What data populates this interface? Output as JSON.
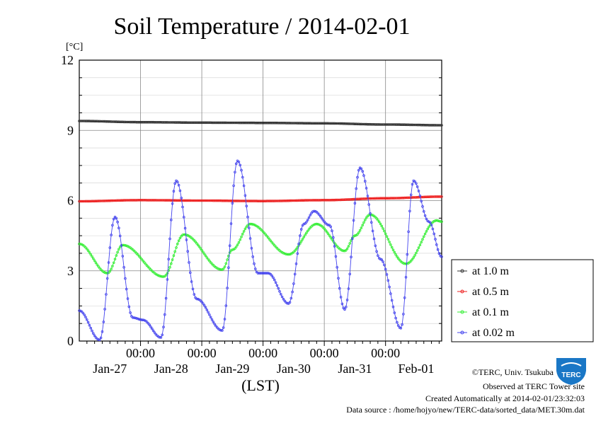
{
  "chart_data": {
    "type": "line",
    "title": "Soil Temperature / 2014-02-01",
    "ylabel": "[°C]",
    "xlabel": "(LST)",
    "ylim": [
      0,
      12
    ],
    "yticks": [
      0,
      3,
      6,
      9,
      12
    ],
    "xlim_hours": [
      0,
      142
    ],
    "xtick_hours": [
      24,
      48,
      72,
      96,
      120
    ],
    "xtick_time_labels": [
      "00:00",
      "00:00",
      "00:00",
      "00:00",
      "00:00"
    ],
    "xtick_date_labels": [
      "Jan-27",
      "Jan-28",
      "Jan-29",
      "Jan-30",
      "Jan-31",
      "Feb-01"
    ],
    "grid": true,
    "legend_position": "right",
    "series": [
      {
        "name": "at 1.0 m",
        "color": "#333333",
        "x": [
          0,
          24,
          48,
          72,
          96,
          120,
          142
        ],
        "y": [
          9.4,
          9.35,
          9.33,
          9.32,
          9.3,
          9.25,
          9.22
        ]
      },
      {
        "name": "at 0.5 m",
        "color": "#ee2222",
        "x": [
          0,
          24,
          48,
          72,
          96,
          120,
          142
        ],
        "y": [
          5.97,
          6.02,
          6.0,
          5.98,
          6.02,
          6.1,
          6.17
        ]
      },
      {
        "name": "at 0.1 m",
        "color": "#33ee33",
        "x": [
          0,
          11,
          17,
          33,
          41,
          56,
          60,
          67,
          82,
          93,
          104,
          108,
          114,
          128,
          140,
          142
        ],
        "y": [
          4.15,
          2.9,
          4.1,
          2.75,
          4.55,
          3.05,
          3.9,
          5.0,
          3.7,
          5.0,
          3.85,
          4.5,
          5.4,
          3.3,
          5.15,
          5.1
        ]
      },
      {
        "name": "at 0.02 m",
        "color": "#4444ee",
        "x": [
          0,
          8,
          14,
          21,
          25,
          32,
          38,
          46,
          56,
          62,
          70,
          74,
          82,
          88,
          92,
          98,
          104,
          110,
          118,
          126,
          131,
          137,
          142
        ],
        "y": [
          1.3,
          0.05,
          5.3,
          1.0,
          0.9,
          0.15,
          6.85,
          1.8,
          0.45,
          7.7,
          2.9,
          2.9,
          1.6,
          5.0,
          5.55,
          4.95,
          1.35,
          7.4,
          3.5,
          0.55,
          6.85,
          5.1,
          3.6
        ]
      }
    ]
  },
  "credits": {
    "copyright": "©TERC, Univ. Tsukuba",
    "observed": "Observed at TERC Tower site",
    "created": "Created Automatically at 2014-02-01/23:32:03",
    "source": "Data source : /home/hojyo/new/TERC-data/sorted_data/MET.30m.dat"
  },
  "logo": {
    "text": "TERC",
    "color": "#1a77c6"
  }
}
